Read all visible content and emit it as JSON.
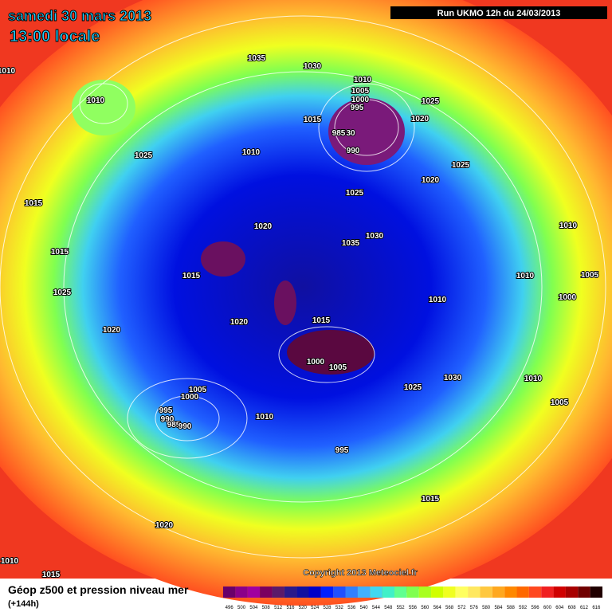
{
  "header": {
    "title": "samedi 30 mars 2013",
    "subtitle": "13:00 locale",
    "run": "Run UKMO 12h du 24/03/2013"
  },
  "copyright": "Copyright 2013 Meteociel.fr",
  "footer": {
    "title": "Géop z500 et pression niveau mer",
    "step": "(+144h)"
  },
  "legend": {
    "values": [
      496,
      500,
      504,
      508,
      512,
      516,
      520,
      524,
      528,
      532,
      536,
      540,
      544,
      548,
      552,
      556,
      560,
      564,
      568,
      572,
      576,
      580,
      584,
      588,
      592,
      596,
      600,
      604,
      608,
      612,
      616
    ],
    "colors": [
      "#6a006a",
      "#8a008a",
      "#a000a0",
      "#7a0060",
      "#5a1a6a",
      "#2a1a8a",
      "#1010a0",
      "#0000c8",
      "#0020ff",
      "#2050ff",
      "#3080ff",
      "#40b0ff",
      "#40d8f0",
      "#40f0c8",
      "#60ff90",
      "#80ff50",
      "#a8ff20",
      "#d0ff00",
      "#f0ff20",
      "#ffff60",
      "#ffe860",
      "#ffc840",
      "#ffa820",
      "#ff8800",
      "#ff6800",
      "#ff4820",
      "#f02020",
      "#d00000",
      "#a80000",
      "#700000",
      "#200000"
    ]
  },
  "isobars": {
    "labels": [
      "1035",
      "1030",
      "1010",
      "1010",
      "1010",
      "1005",
      "1000",
      "995",
      "1025",
      "1015",
      "1020",
      "985",
      "30",
      "990",
      "1010",
      "1025",
      "1025",
      "1020",
      "1025",
      "1015",
      "1020",
      "1030",
      "1035",
      "1010",
      "1015",
      "1010",
      "1005",
      "1015",
      "1025",
      "1000",
      "1010",
      "1015",
      "1020",
      "1020",
      "1000",
      "1005",
      "1010",
      "1030",
      "1005",
      "1000",
      "1025",
      "1005",
      "995",
      "990",
      "985",
      "990",
      "1010",
      "995",
      "1015",
      "1020",
      "1010",
      "1015"
    ]
  }
}
